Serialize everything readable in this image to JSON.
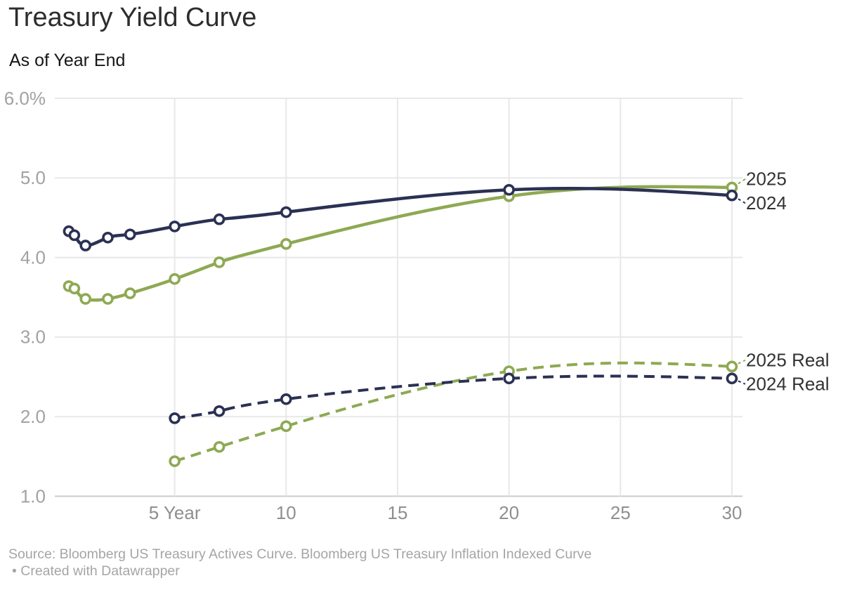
{
  "header": {
    "title": "Treasury Yield Curve",
    "subtitle": "As of Year End"
  },
  "chart_data": {
    "type": "line",
    "title": "Treasury Yield Curve",
    "subtitle": "As of Year End",
    "unit": "%",
    "xlabel": "",
    "ylabel": "",
    "xlim": [
      -0.4,
      30.55
    ],
    "ylim": [
      1.0,
      6.0
    ],
    "grid": true,
    "legend": "direct-labels-right",
    "x_ticks": [
      {
        "v": 5,
        "label": "5 Year"
      },
      {
        "v": 10,
        "label": "10"
      },
      {
        "v": 15,
        "label": "15"
      },
      {
        "v": 20,
        "label": "20"
      },
      {
        "v": 25,
        "label": "25"
      },
      {
        "v": 30,
        "label": "30"
      }
    ],
    "y_ticks": [
      {
        "v": 1,
        "label": "1.0"
      },
      {
        "v": 2,
        "label": "2.0"
      },
      {
        "v": 3,
        "label": "3.0"
      },
      {
        "v": 4,
        "label": "4.0"
      },
      {
        "v": 5,
        "label": "5.0"
      },
      {
        "v": 6,
        "label": "6.0%"
      }
    ],
    "series": [
      {
        "name": "2025 Real",
        "color": "#8ea953",
        "dash": true,
        "label_dy": -9,
        "x": [
          5,
          7,
          10,
          20,
          30
        ],
        "values": [
          1.44,
          1.62,
          1.88,
          2.57,
          2.63
        ]
      },
      {
        "name": "2024 Real",
        "color": "#2b3153",
        "dash": true,
        "label_dy": 8,
        "x": [
          5,
          7,
          10,
          20,
          30
        ],
        "values": [
          1.98,
          2.07,
          2.22,
          2.48,
          2.48
        ]
      },
      {
        "name": "2025",
        "color": "#8ea953",
        "dash": false,
        "label_dy": -12,
        "x": [
          0.25,
          0.5,
          1,
          2,
          3,
          5,
          7,
          10,
          20,
          30
        ],
        "values": [
          3.64,
          3.61,
          3.48,
          3.48,
          3.55,
          3.73,
          3.94,
          4.17,
          4.77,
          4.88
        ]
      },
      {
        "name": "2024",
        "color": "#2b3153",
        "dash": false,
        "label_dy": 11,
        "x": [
          0.25,
          0.5,
          1,
          2,
          3,
          5,
          7,
          10,
          20,
          30
        ],
        "values": [
          4.33,
          4.28,
          4.15,
          4.25,
          4.29,
          4.39,
          4.48,
          4.57,
          4.85,
          4.78
        ]
      }
    ]
  },
  "colors": {
    "navy": "#2b3153",
    "green": "#8ea953",
    "grid": "#e8e8e8",
    "baseline": "#cbcbcb",
    "y_tick_text": "#a2a2a2",
    "x_tick_text": "#8f8f8f",
    "series_label_text": "#333333",
    "footer_text": "#a5a5a5"
  },
  "footer": {
    "source": "Source: Bloomberg US Treasury Actives Curve. Bloomberg US Treasury Inflation Indexed Curve",
    "byline": "• Created with Datawrapper"
  }
}
